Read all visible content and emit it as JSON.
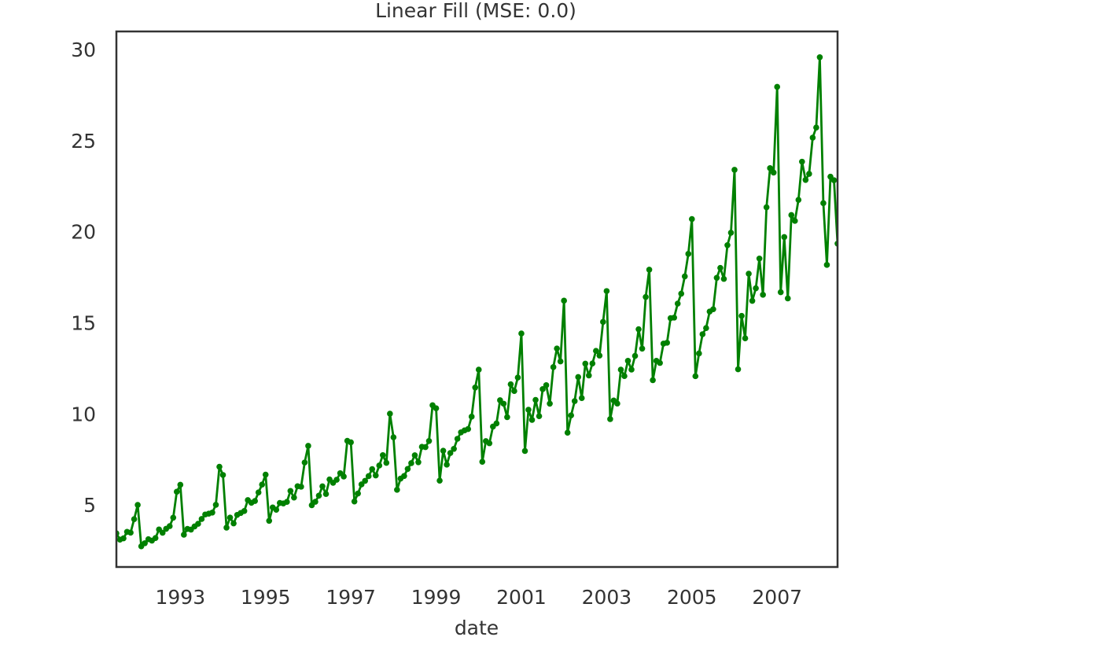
{
  "chart_data": {
    "type": "line",
    "title": "Linear Fill (MSE: 0.0)",
    "x_label": "date",
    "color": "green",
    "markers": true,
    "grid": false,
    "xlim": [
      "1991-07",
      "2008-06"
    ],
    "ylim": [
      1.68,
      31.08
    ],
    "yticks": [
      5,
      10,
      15,
      20,
      25,
      30
    ],
    "xticks": [
      {
        "value": "1993-01",
        "label": "1993"
      },
      {
        "value": "1995-01",
        "label": "1995"
      },
      {
        "value": "1997-01",
        "label": "1997"
      },
      {
        "value": "1999-01",
        "label": "1999"
      },
      {
        "value": "2001-01",
        "label": "2001"
      },
      {
        "value": "2003-01",
        "label": "2003"
      },
      {
        "value": "2005-01",
        "label": "2005"
      },
      {
        "value": "2007-01",
        "label": "2007"
      }
    ],
    "start": "1991-07",
    "values": [
      3.526591,
      3.180891,
      3.252221,
      3.611003,
      3.565869,
      4.306371,
      5.088335,
      2.81452,
      2.985811,
      3.20478,
      3.127578,
      3.270523,
      3.737851,
      3.558776,
      3.777202,
      3.92449,
      4.386531,
      5.810549,
      6.192068,
      3.450857,
      3.772307,
      3.734303,
      3.905399,
      4.049687,
      4.315566,
      4.562185,
      4.608662,
      4.667851,
      5.093841,
      7.179962,
      6.731473,
      3.841278,
      4.394076,
      4.075341,
      4.540645,
      4.645615,
      4.752607,
      5.350605,
      5.204455,
      5.301651,
      5.773742,
      6.204593,
      6.749484,
      4.216067,
      4.949349,
      4.823045,
      5.194754,
      5.170787,
      5.256742,
      5.855277,
      5.490729,
      6.115293,
      6.088473,
      7.416598,
      8.329452,
      5.069796,
      5.262557,
      5.597126,
      6.110296,
      5.689161,
      6.486849,
      6.300569,
      6.467476,
      6.828629,
      6.649078,
      8.606937,
      8.524471,
      5.277918,
      5.714303,
      6.214529,
      6.411929,
      6.667716,
      7.050831,
      6.704919,
      7.250988,
      7.819733,
      7.398101,
      10.096233,
      8.798513,
      5.918261,
      6.534493,
      6.675736,
      7.064201,
      7.383381,
      7.813496,
      7.431892,
      8.275117,
      8.260441,
      8.596156,
      10.558939,
      10.391416,
      6.421535,
      8.062619,
      7.297739,
      7.936916,
      8.165323,
      8.71742,
      9.070964,
      9.177113,
      9.251887,
      9.933136,
      11.532974,
      12.511462,
      7.457199,
      8.591191,
      8.474,
      9.386803,
      9.560399,
      10.834295,
      10.643751,
      9.908162,
      11.710041,
      11.340151,
      12.079132,
      14.497581,
      8.049275,
      10.312891,
      9.753358,
      10.850382,
      9.961719,
      11.443601,
      11.659239,
      10.64706,
      12.652134,
      13.674466,
      12.965735,
      16.300269,
      9.053485,
      10.002449,
      10.78875,
      12.106705,
      10.954101,
      12.844566,
      12.1965,
      12.854748,
      13.542004,
      13.28764,
      15.134918,
      16.82835,
      9.800215,
      10.816994,
      10.654223,
      12.512323,
      12.16121,
      12.998046,
      12.517276,
      13.268658,
      14.733622,
      13.669382,
      16.503966,
      18.003768,
      11.93803,
      12.9979,
      12.882645,
      13.943447,
      13.989472,
      15.339097,
      15.370764,
      16.142005,
      16.685754,
      17.636728,
      18.869325,
      20.778723,
      12.154552,
      13.402392,
      14.459239,
      14.795102,
      15.705248,
      15.82955,
      17.554701,
      18.100864,
      17.496668,
      19.347265,
      20.031291,
      23.486694,
      12.536987,
      15.467018,
      14.233539,
      17.783058,
      16.291602,
      16.980282,
      18.612189,
      16.623343,
      21.430241,
      23.575517,
      23.334206,
      28.038383,
      16.763869,
      19.792754,
      16.427305,
      21.000742,
      20.681002,
      21.83489,
      23.930204,
      22.930357,
      23.26334,
      25.25003,
      25.80609,
      29.665356,
      21.654285,
      18.264945,
      23.107677,
      22.91251,
      19.43174
    ]
  }
}
